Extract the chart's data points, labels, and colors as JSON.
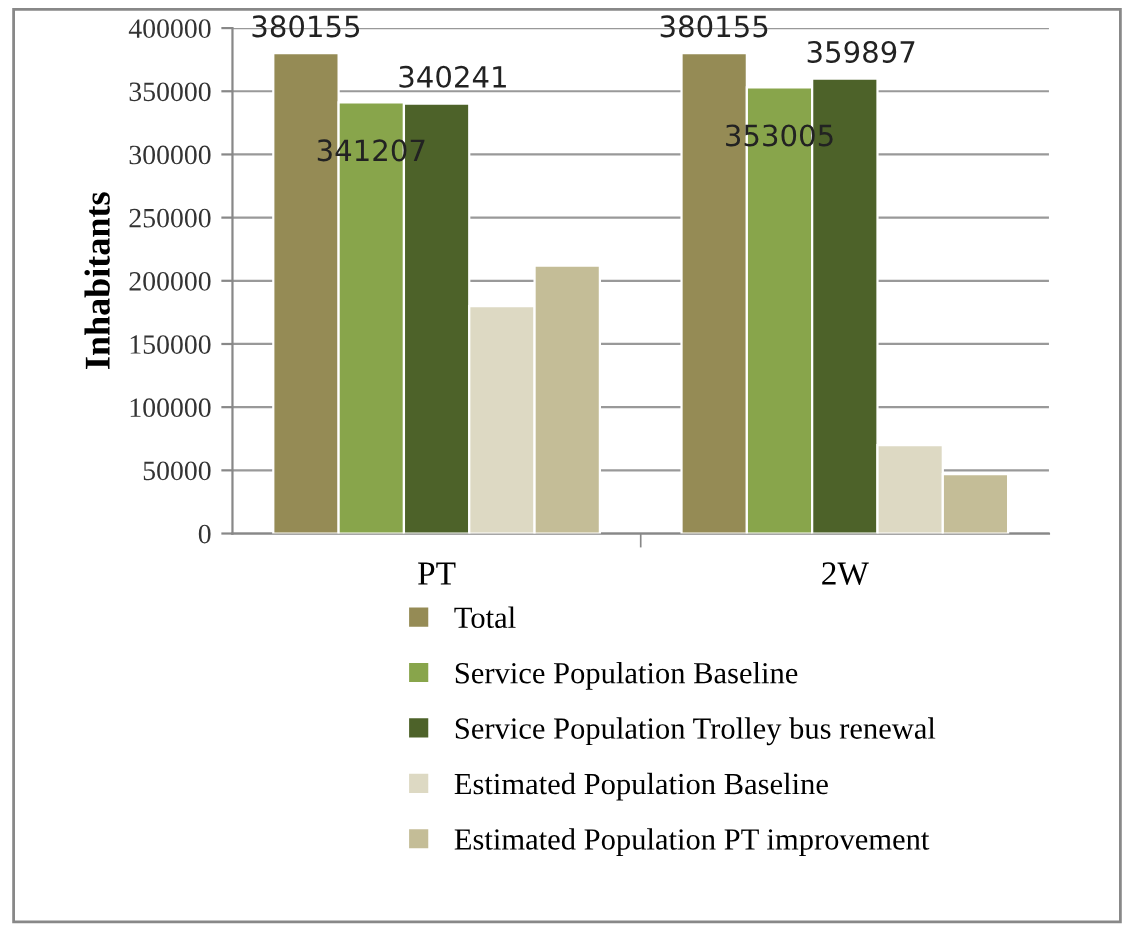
{
  "chart_data": {
    "type": "bar",
    "ylabel": "Inhabitants",
    "categories": [
      "PT",
      "2W"
    ],
    "series": [
      {
        "name": "Total",
        "color": "#958b55",
        "values": [
          380155,
          380155
        ],
        "value_labels": [
          "380155",
          "380155"
        ]
      },
      {
        "name": "Service Population Baseline",
        "color": "#88a54b",
        "values": [
          341207,
          353005
        ],
        "value_labels": [
          "341207",
          "353005"
        ]
      },
      {
        "name": "Service Population Trolley bus renewal",
        "color": "#4d6229",
        "values": [
          340241,
          359897
        ],
        "value_labels": [
          "340241",
          "359897"
        ]
      },
      {
        "name": "Estimated Population Baseline",
        "color": "#ddd9c3",
        "values": [
          180000,
          70000
        ]
      },
      {
        "name": "Estimated Population PT improvement",
        "color": "#c4bd97",
        "values": [
          212000,
          47000
        ]
      }
    ],
    "ylim": [
      0,
      400000
    ],
    "yticks": [
      0,
      50000,
      100000,
      150000,
      200000,
      250000,
      300000,
      350000,
      400000
    ],
    "grid": "y",
    "legend": "bottom"
  }
}
